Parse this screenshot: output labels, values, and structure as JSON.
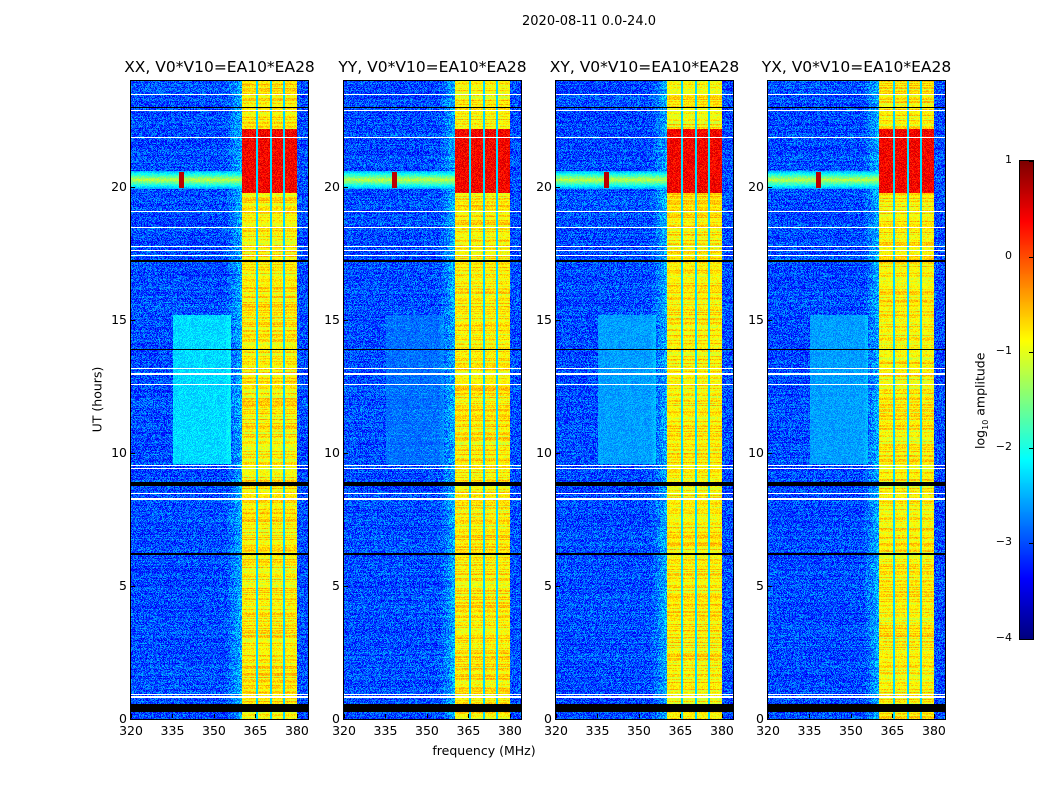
{
  "chart_data": {
    "type": "heatmap",
    "title": "2020-08-11 0.0-24.0",
    "xlabel": "frequency (MHz)",
    "ylabel": "UT (hours)",
    "xlim": [
      320,
      384
    ],
    "ylim": [
      0,
      24
    ],
    "xticks": [
      320,
      335,
      350,
      365,
      380
    ],
    "yticks": [
      0,
      5,
      10,
      15,
      20
    ],
    "panels": [
      {
        "title": "XX, V0*V10=EA10*EA28",
        "broad_emission": -2.3
      },
      {
        "title": "YY, V0*V10=EA10*EA28",
        "broad_emission": -2.9
      },
      {
        "title": "XY, V0*V10=EA10*EA28",
        "broad_emission": -2.6
      },
      {
        "title": "YX, V0*V10=EA10*EA28",
        "broad_emission": -2.6
      }
    ],
    "colorbar": {
      "label_main": "log",
      "label_sub": "10",
      "label_tail": " amplitude",
      "colormap": "jet",
      "range": [
        -4,
        1
      ],
      "ticks": [
        "1",
        "0",
        "−1",
        "−2",
        "−3",
        "−4"
      ],
      "tick_values": [
        1,
        0,
        -1,
        -2,
        -3,
        -4
      ]
    },
    "features": {
      "background_level": -3.0,
      "rfi_band_mhz": [
        360,
        380
      ],
      "rfi_band_level": -0.8,
      "rfi_band_gaps_mhz": [
        365.5,
        370.5,
        375.2
      ],
      "strong_hours": [
        19.8,
        22.2
      ],
      "strong_level": 0.4,
      "rfi_line_hour": 20.3,
      "rfi_spike_mhz": 338,
      "broad_emission_mhz": [
        335,
        356
      ],
      "broad_emission_hours": [
        9.6,
        15.2
      ],
      "flagged_white_hours": [
        0.85,
        0.95,
        8.3,
        8.5,
        9.45,
        9.55,
        12.6,
        13.0,
        13.2,
        17.45,
        17.65,
        17.8,
        18.5,
        19.1,
        21.9,
        22.9,
        23.5
      ],
      "flagged_black_hours": [
        [
          0.3,
          0.6
        ],
        [
          8.8,
          8.95
        ],
        [
          17.2,
          17.3
        ],
        [
          23.0,
          23.05
        ],
        [
          6.2,
          6.25
        ],
        [
          13.9,
          13.95
        ]
      ]
    }
  }
}
